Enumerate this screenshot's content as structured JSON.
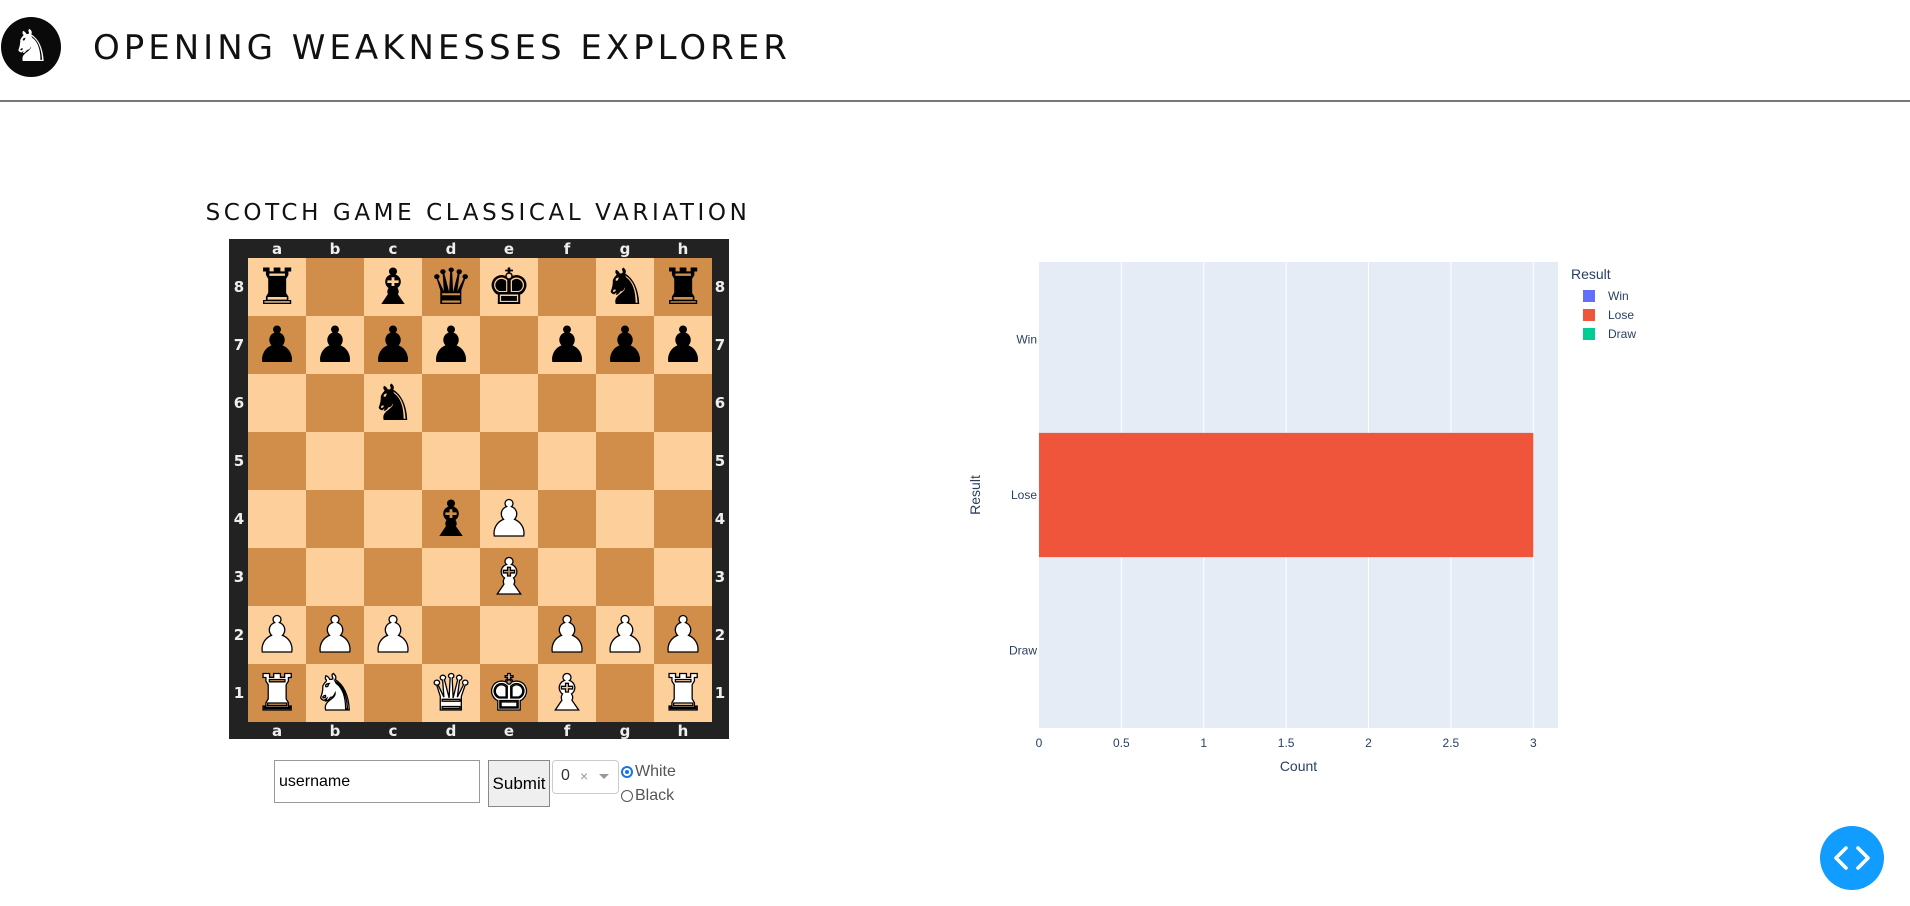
{
  "header": {
    "title": "OPENING WEAKNESSES EXPLORER",
    "logo_icon": "chess-knight-icon",
    "logo_glyph": "♞"
  },
  "opening": {
    "name": "SCOTCH GAME CLASSICAL VARIATION"
  },
  "board": {
    "files": [
      "a",
      "b",
      "c",
      "d",
      "e",
      "f",
      "g",
      "h"
    ],
    "ranks": [
      "8",
      "7",
      "6",
      "5",
      "4",
      "3",
      "2",
      "1"
    ],
    "colors": {
      "light": "#fdcf9b",
      "dark": "#d18e4a",
      "frame": "#222222"
    },
    "position": [
      [
        "r",
        "",
        "b",
        "q",
        "k",
        "",
        "n",
        "r"
      ],
      [
        "p",
        "p",
        "p",
        "p",
        "",
        "p",
        "p",
        "p"
      ],
      [
        "",
        "",
        "n",
        "",
        "",
        "",
        "",
        ""
      ],
      [
        "",
        "",
        "",
        "",
        "",
        "",
        "",
        ""
      ],
      [
        "",
        "",
        "",
        "b",
        "P",
        "",
        "",
        ""
      ],
      [
        "",
        "",
        "",
        "",
        "B",
        "",
        "",
        ""
      ],
      [
        "P",
        "P",
        "P",
        "",
        "",
        "P",
        "P",
        "P"
      ],
      [
        "R",
        "N",
        "",
        "Q",
        "K",
        "B",
        "",
        "R"
      ]
    ]
  },
  "controls": {
    "username_value": "username",
    "submit_label": "Submit",
    "select_value": "0",
    "select_clear": "×",
    "color_options": [
      {
        "label": "White",
        "checked": true
      },
      {
        "label": "Black",
        "checked": false
      }
    ]
  },
  "chart_data": {
    "type": "bar",
    "orientation": "horizontal",
    "categories": [
      "Win",
      "Lose",
      "Draw"
    ],
    "series": [
      {
        "name": "Win",
        "values": [
          null,
          null,
          null
        ],
        "color": "#636efa"
      },
      {
        "name": "Lose",
        "values": [
          null,
          3,
          null
        ],
        "color": "#ef553b"
      },
      {
        "name": "Draw",
        "values": [
          null,
          null,
          null
        ],
        "color": "#00cc96"
      }
    ],
    "xlabel": "Count",
    "ylabel": "Result",
    "xlim": [
      0,
      3.15
    ],
    "xticks": [
      0,
      0.5,
      1,
      1.5,
      2,
      2.5,
      3
    ],
    "xtick_labels": [
      "0",
      "0.5",
      "1",
      "1.5",
      "2",
      "2.5",
      "3"
    ],
    "legend_title": "Result",
    "legend_position": "top-right",
    "grid": true,
    "plot_bg": "#e5ecf6"
  },
  "floating_button": {
    "icon": "code-brackets-icon"
  }
}
